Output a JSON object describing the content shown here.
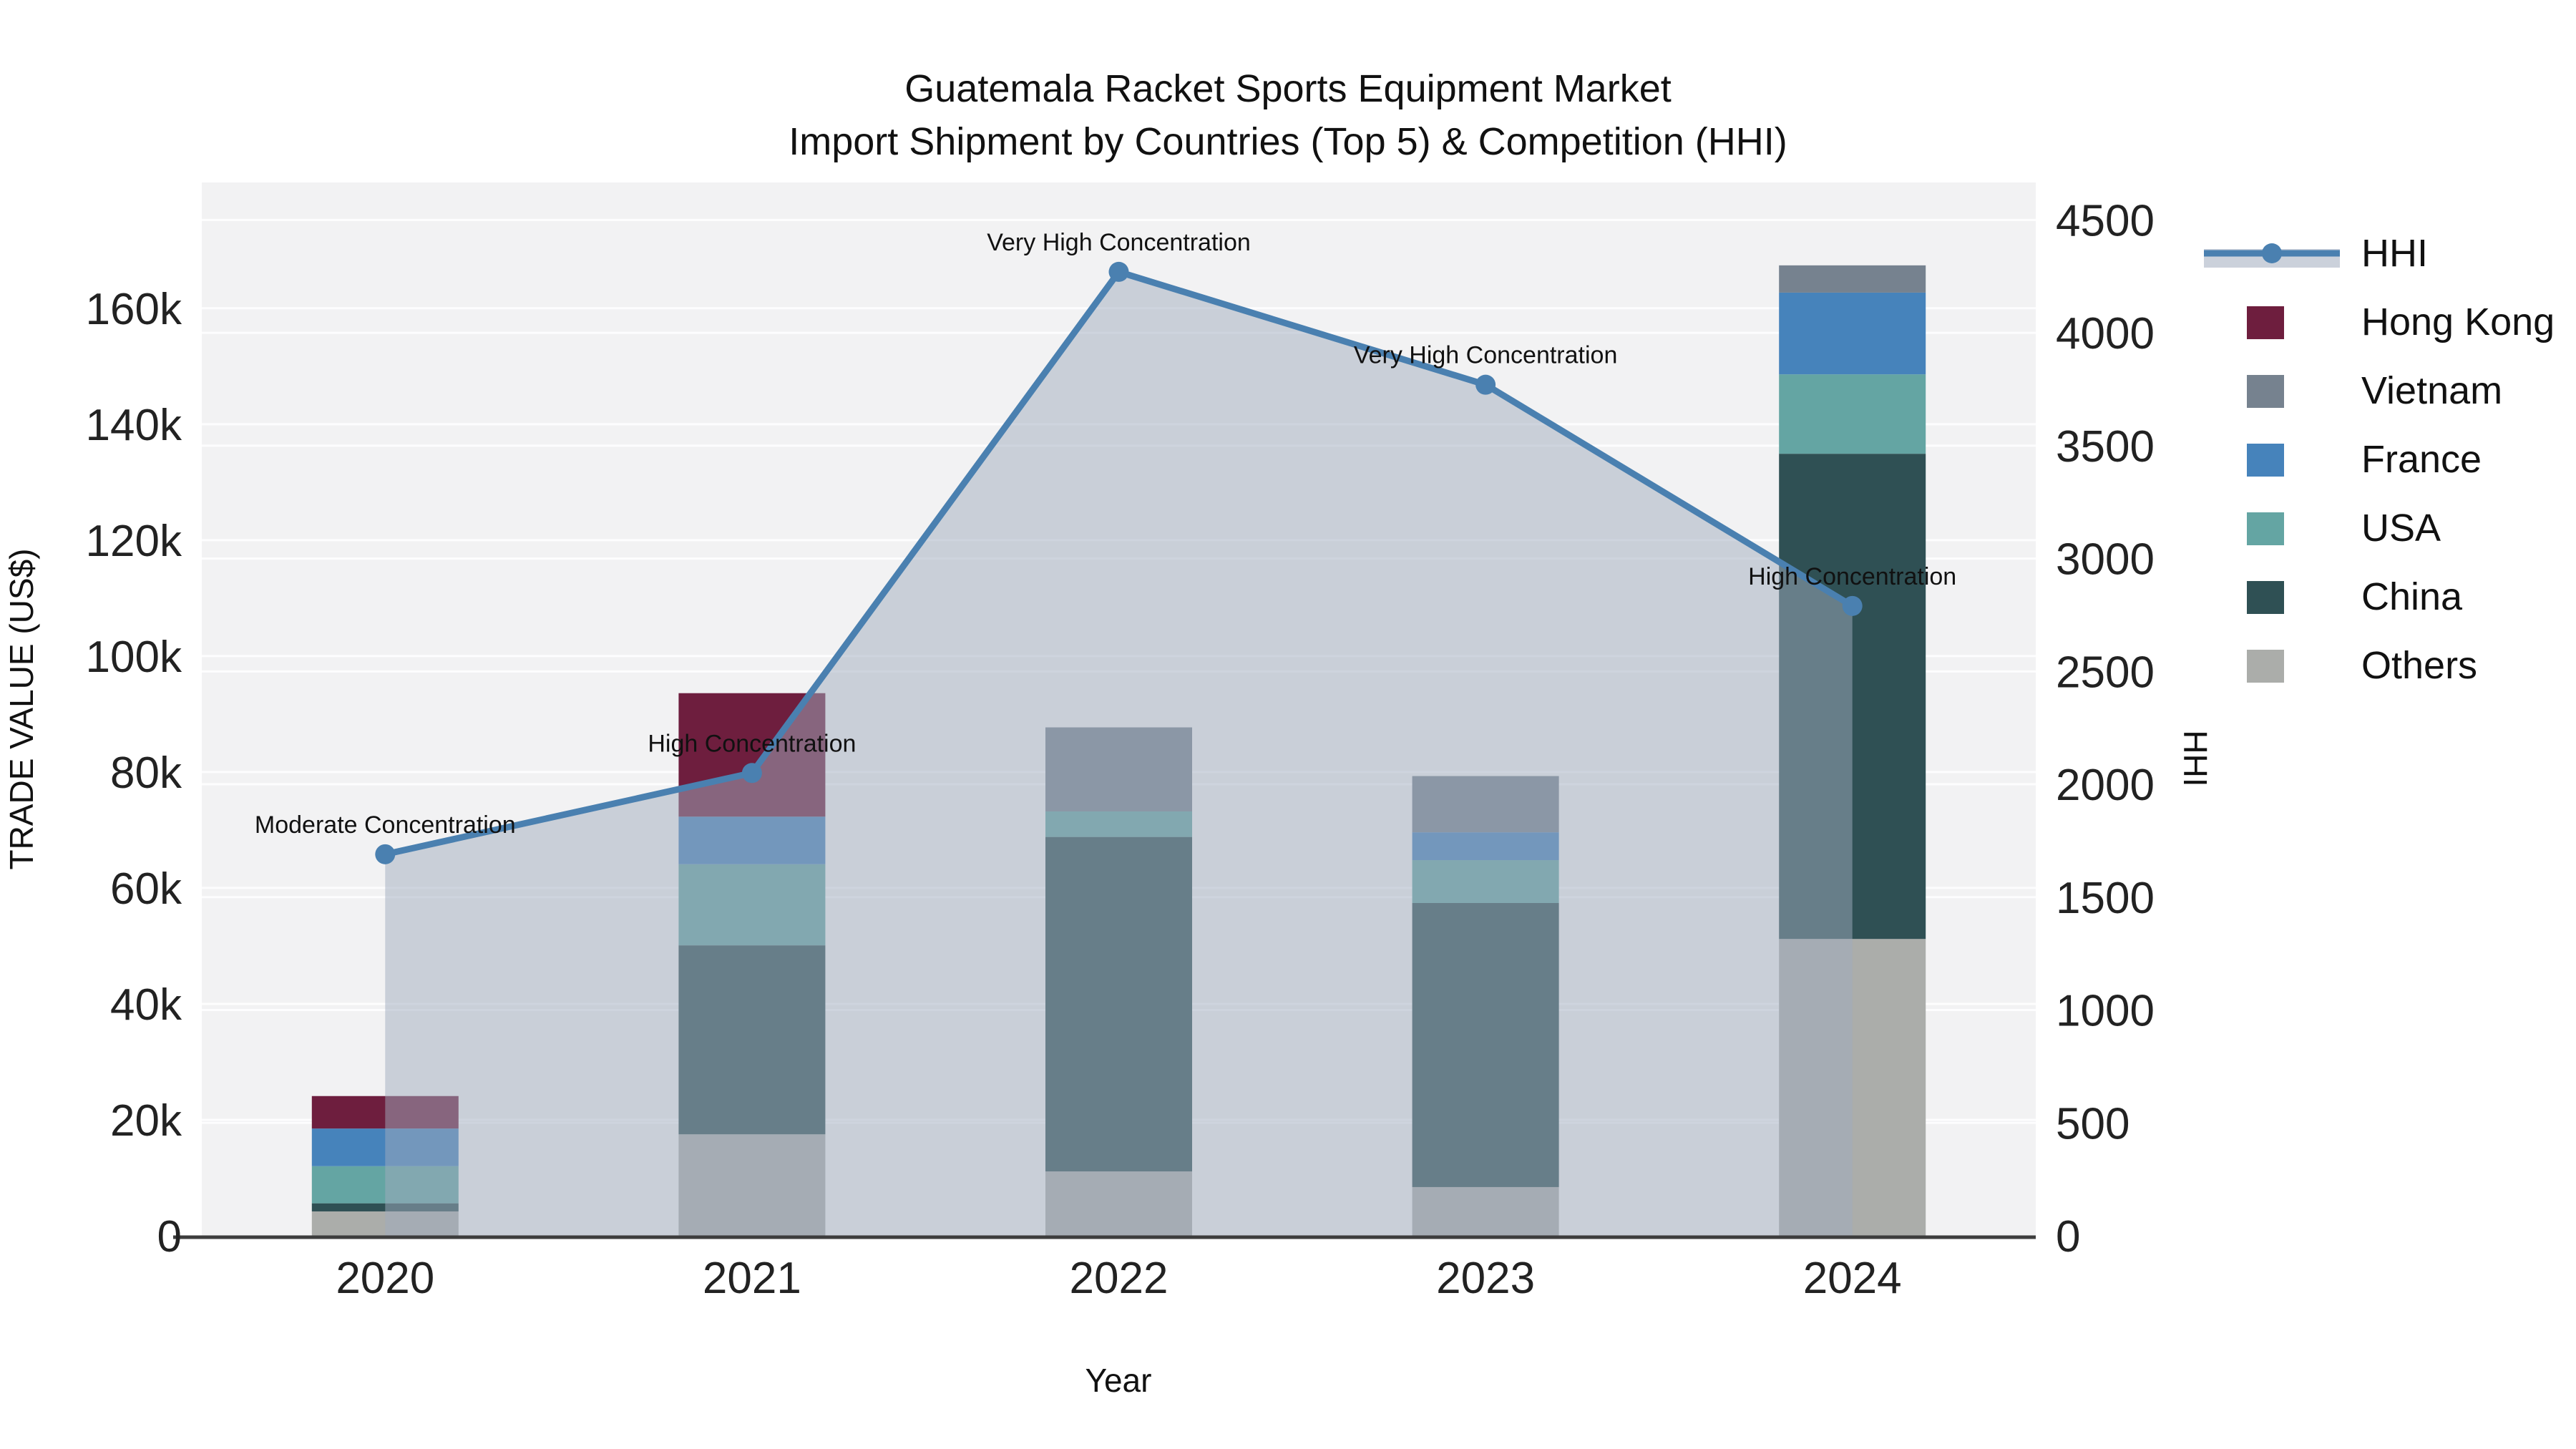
{
  "title": {
    "line1": "Guatemala Racket Sports Equipment Market",
    "line2": "Import Shipment by Countries (Top 5) & Competition (HHI)"
  },
  "axes": {
    "x_title": "Year",
    "y_left_title": "TRADE VALUE (US$)",
    "y_right_title": "HHI",
    "x_ticks": [
      "2020",
      "2021",
      "2022",
      "2023",
      "2024"
    ],
    "y_left_ticks": [
      {
        "value": 0,
        "label": "0"
      },
      {
        "value": 20000,
        "label": "20k"
      },
      {
        "value": 40000,
        "label": "40k"
      },
      {
        "value": 60000,
        "label": "60k"
      },
      {
        "value": 80000,
        "label": "80k"
      },
      {
        "value": 100000,
        "label": "100k"
      },
      {
        "value": 120000,
        "label": "120k"
      },
      {
        "value": 140000,
        "label": "140k"
      },
      {
        "value": 160000,
        "label": "160k"
      }
    ],
    "y_right_ticks": [
      {
        "value": 0,
        "label": "0"
      },
      {
        "value": 500,
        "label": "500"
      },
      {
        "value": 1000,
        "label": "1000"
      },
      {
        "value": 1500,
        "label": "1500"
      },
      {
        "value": 2000,
        "label": "2000"
      },
      {
        "value": 2500,
        "label": "2500"
      },
      {
        "value": 3000,
        "label": "3000"
      },
      {
        "value": 3500,
        "label": "3500"
      },
      {
        "value": 4000,
        "label": "4000"
      },
      {
        "value": 4500,
        "label": "4500"
      }
    ]
  },
  "legend": {
    "items": [
      {
        "label": "HHI",
        "type": "line",
        "color": "#4a80b0"
      },
      {
        "label": "Hong Kong",
        "type": "swatch",
        "color": "#6e1e3e"
      },
      {
        "label": "Vietnam",
        "type": "swatch",
        "color": "#76828f"
      },
      {
        "label": "France",
        "type": "swatch",
        "color": "#4683bb"
      },
      {
        "label": "USA",
        "type": "swatch",
        "color": "#64a5a3"
      },
      {
        "label": "China",
        "type": "swatch",
        "color": "#2f5054"
      },
      {
        "label": "Others",
        "type": "swatch",
        "color": "#abadaa"
      }
    ]
  },
  "colors": {
    "hhi_line": "#4a80b0",
    "hhi_area_fill": "rgba(160,172,190,0.5)",
    "plot_background": "#f2f2f3",
    "gridline": "rgba(255,255,255,0.85)",
    "axis_line": "#3d3d3d",
    "hong_kong": "#6e1e3e",
    "vietnam": "#76828f",
    "france": "#4683bb",
    "usa": "#64a5a3",
    "china": "#2f5054",
    "others": "#abadaa"
  },
  "chart_data": {
    "type": "combo-stacked-bar-line",
    "categories": [
      "2020",
      "2021",
      "2022",
      "2023",
      "2024"
    ],
    "stack_order_bottom_to_top": [
      "Others",
      "China",
      "USA",
      "France",
      "Vietnam",
      "Hong Kong"
    ],
    "series": [
      {
        "name": "Hong Kong",
        "axis": "left",
        "values": [
          5600,
          21300,
          0,
          0,
          0
        ]
      },
      {
        "name": "Vietnam",
        "axis": "left",
        "values": [
          0,
          0,
          14500,
          9700,
          4700
        ]
      },
      {
        "name": "France",
        "axis": "left",
        "values": [
          6500,
          8200,
          0,
          4800,
          14100
        ]
      },
      {
        "name": "USA",
        "axis": "left",
        "values": [
          6400,
          14000,
          4400,
          7400,
          13700
        ]
      },
      {
        "name": "China",
        "axis": "left",
        "values": [
          1400,
          32600,
          57700,
          49000,
          83700
        ]
      },
      {
        "name": "Others",
        "axis": "left",
        "values": [
          4200,
          17500,
          11100,
          8400,
          51200
        ]
      }
    ],
    "bar_totals": [
      24100,
      93600,
      87700,
      79300,
      167400
    ],
    "hhi_series": {
      "name": "HHI",
      "axis": "right",
      "values": [
        1690,
        2050,
        4270,
        3770,
        2790
      ]
    },
    "annotations": [
      {
        "category": "2020",
        "text": "Moderate Concentration"
      },
      {
        "category": "2021",
        "text": "High Concentration"
      },
      {
        "category": "2022",
        "text": "Very High Concentration"
      },
      {
        "category": "2023",
        "text": "Very High Concentration"
      },
      {
        "category": "2024",
        "text": "High Concentration"
      }
    ],
    "xlabel": "Year",
    "ylabel_left": "TRADE VALUE (US$)",
    "ylabel_right": "HHI",
    "ylim_left": [
      0,
      181700
    ],
    "ylim_right": [
      0,
      4666
    ],
    "grid": true,
    "legend_position": "right"
  }
}
